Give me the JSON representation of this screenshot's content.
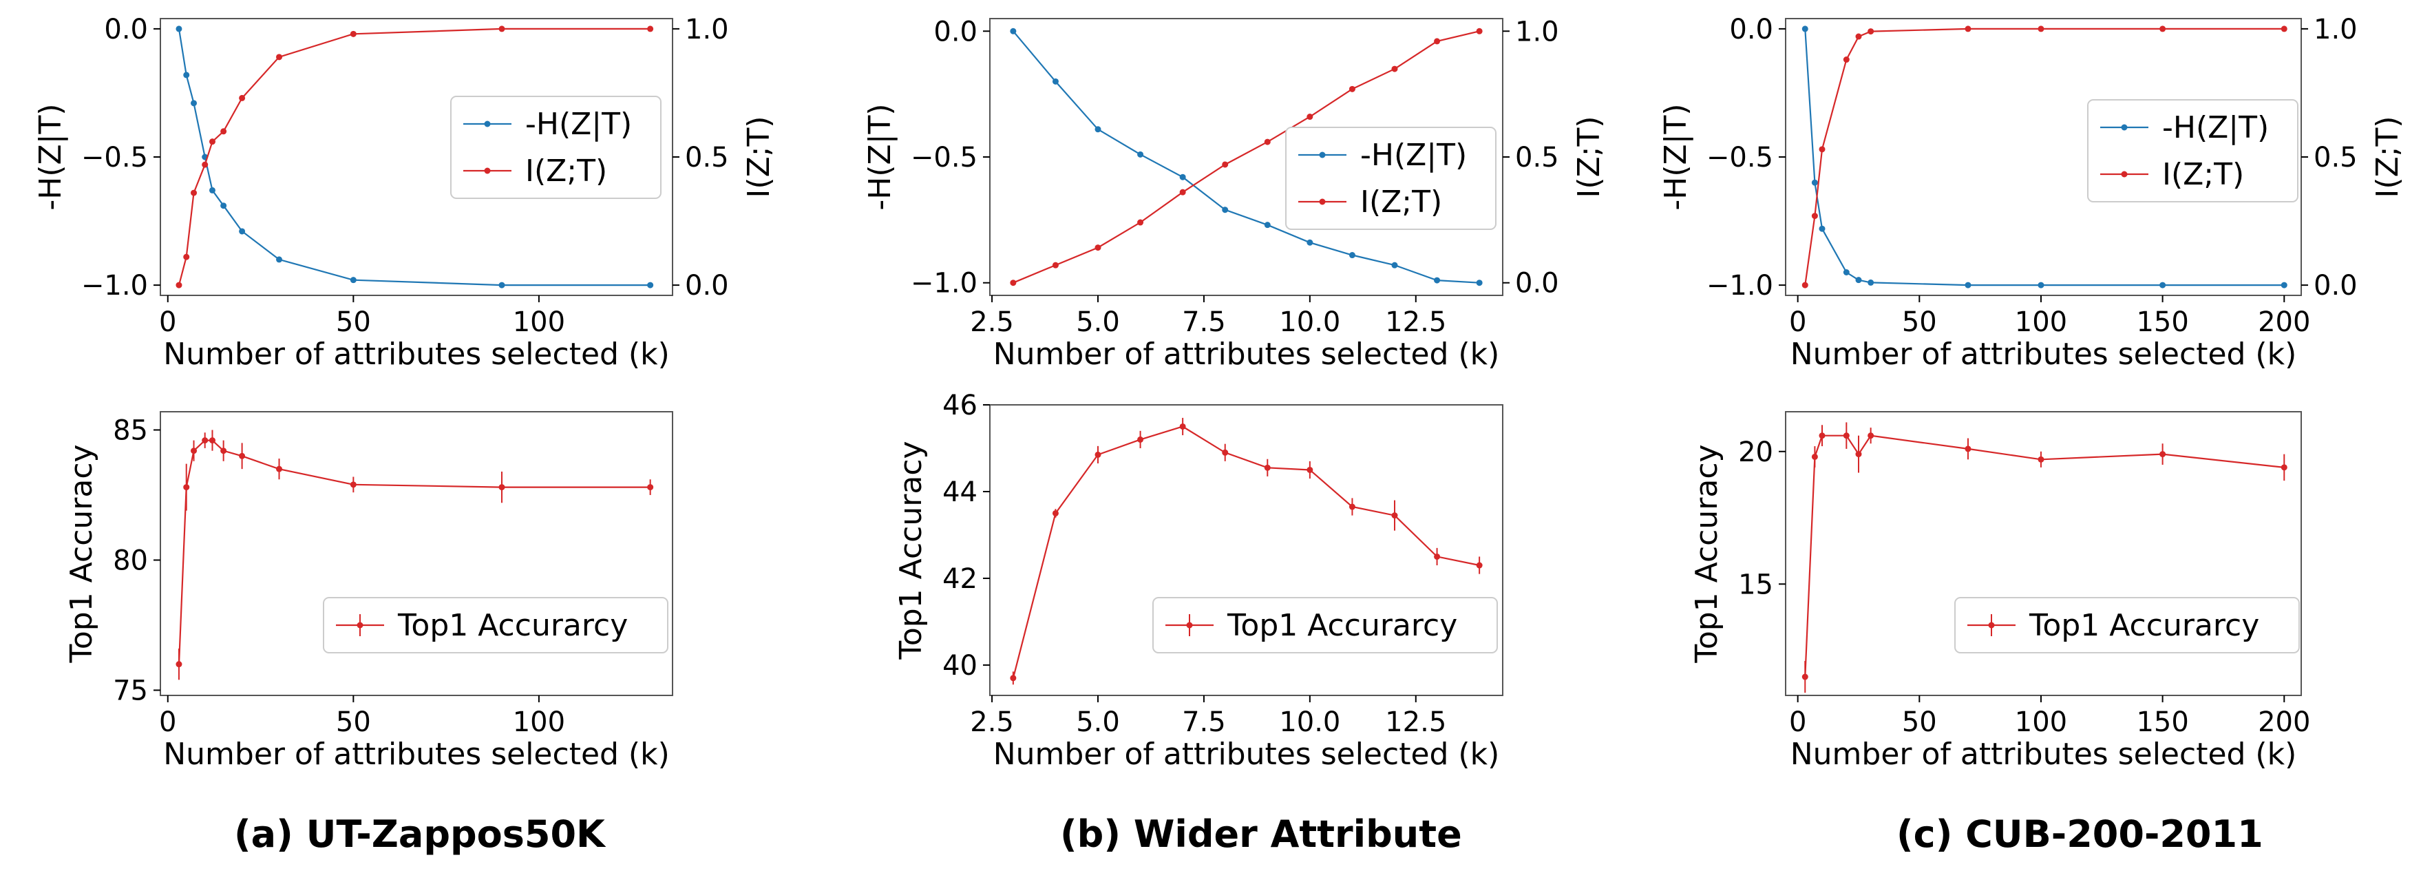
{
  "colors": {
    "blue": "#1f77b4",
    "red": "#d62728",
    "axis": "#000000",
    "legend_border": "#cccccc"
  },
  "captions": [
    "(a) UT-Zappos50K",
    "(b) Wider Attribute",
    "(c) CUB-200-2011"
  ],
  "chart_data": [
    {
      "type": "line",
      "panel": "a-top",
      "xlabel": "Number of attributes selected (k)",
      "ylabel": "-H(Z|T)",
      "ylabel_right": "I(Z;T)",
      "xlim": [
        -2,
        136
      ],
      "ylim": [
        -1.04,
        0.04
      ],
      "ylim_right": [
        -0.04,
        1.04
      ],
      "xticks": [
        0,
        50,
        100
      ],
      "xtick_labels": [
        "0",
        "50",
        "100"
      ],
      "yticks": [
        0.0,
        -0.5,
        -1.0
      ],
      "ytick_labels": [
        "0.0",
        "−0.5",
        "−1.0"
      ],
      "yticks_right": [
        1.0,
        0.5,
        0.0
      ],
      "ytick_labels_right": [
        "1.0",
        "0.5",
        "0.0"
      ],
      "legend": "center-right",
      "series": [
        {
          "name": "-H(Z|T)",
          "axis": "left",
          "color": "#1f77b4",
          "x": [
            3,
            5,
            7,
            10,
            12,
            15,
            20,
            30,
            50,
            90,
            130
          ],
          "y": [
            0.0,
            -0.18,
            -0.29,
            -0.5,
            -0.63,
            -0.69,
            -0.79,
            -0.9,
            -0.98,
            -1.0,
            -1.0
          ]
        },
        {
          "name": "I(Z;T)",
          "axis": "right",
          "color": "#d62728",
          "x": [
            3,
            5,
            7,
            10,
            12,
            15,
            20,
            30,
            50,
            90,
            130
          ],
          "y": [
            0.0,
            0.11,
            0.36,
            0.47,
            0.56,
            0.6,
            0.73,
            0.89,
            0.98,
            1.0,
            1.0
          ]
        }
      ]
    },
    {
      "type": "line",
      "panel": "b-top",
      "xlabel": "Number of attributes selected (k)",
      "ylabel": "-H(Z|T)",
      "ylabel_right": "I(Z;T)",
      "xlim": [
        2.45,
        14.55
      ],
      "ylim": [
        -1.05,
        0.05
      ],
      "ylim_right": [
        -0.05,
        1.05
      ],
      "xticks": [
        2.5,
        5.0,
        7.5,
        10.0,
        12.5
      ],
      "xtick_labels": [
        "2.5",
        "5.0",
        "7.5",
        "10.0",
        "12.5"
      ],
      "yticks": [
        0.0,
        -0.5,
        -1.0
      ],
      "ytick_labels": [
        "0.0",
        "−0.5",
        "−1.0"
      ],
      "yticks_right": [
        1.0,
        0.5,
        0.0
      ],
      "ytick_labels_right": [
        "1.0",
        "0.5",
        "0.0"
      ],
      "legend": "center-right",
      "series": [
        {
          "name": "-H(Z|T)",
          "axis": "left",
          "color": "#1f77b4",
          "x": [
            3,
            4,
            5,
            6,
            7,
            8,
            9,
            10,
            11,
            12,
            13,
            14
          ],
          "y": [
            0.0,
            -0.2,
            -0.39,
            -0.49,
            -0.58,
            -0.71,
            -0.77,
            -0.84,
            -0.89,
            -0.93,
            -0.99,
            -1.0
          ]
        },
        {
          "name": "I(Z;T)",
          "axis": "right",
          "color": "#d62728",
          "x": [
            3,
            4,
            5,
            6,
            7,
            8,
            9,
            10,
            11,
            12,
            13,
            14
          ],
          "y": [
            0.0,
            0.07,
            0.14,
            0.24,
            0.36,
            0.47,
            0.56,
            0.66,
            0.77,
            0.85,
            0.96,
            1.0
          ]
        }
      ]
    },
    {
      "type": "line",
      "panel": "c-top",
      "xlabel": "Number of attributes selected (k)",
      "ylabel": "-H(Z|T)",
      "ylabel_right": "I(Z;T)",
      "xlim": [
        -5,
        207
      ],
      "ylim": [
        -1.04,
        0.04
      ],
      "ylim_right": [
        -0.04,
        1.04
      ],
      "xticks": [
        0,
        50,
        100,
        150,
        200
      ],
      "xtick_labels": [
        "0",
        "50",
        "100",
        "150",
        "200"
      ],
      "yticks": [
        0.0,
        -0.5,
        -1.0
      ],
      "ytick_labels": [
        "0.0",
        "−0.5",
        "−1.0"
      ],
      "yticks_right": [
        1.0,
        0.5,
        0.0
      ],
      "ytick_labels_right": [
        "1.0",
        "0.5",
        "0.0"
      ],
      "legend": "center-right",
      "series": [
        {
          "name": "-H(Z|T)",
          "axis": "left",
          "color": "#1f77b4",
          "x": [
            3,
            7,
            10,
            20,
            25,
            30,
            70,
            100,
            150,
            200
          ],
          "y": [
            0.0,
            -0.6,
            -0.78,
            -0.95,
            -0.98,
            -0.99,
            -1.0,
            -1.0,
            -1.0,
            -1.0
          ]
        },
        {
          "name": "I(Z;T)",
          "axis": "right",
          "color": "#d62728",
          "x": [
            3,
            7,
            10,
            20,
            25,
            30,
            70,
            100,
            150,
            200
          ],
          "y": [
            0.0,
            0.27,
            0.53,
            0.88,
            0.97,
            0.99,
            1.0,
            1.0,
            1.0,
            1.0
          ]
        }
      ]
    },
    {
      "type": "line",
      "panel": "a-bottom",
      "xlabel": "Number of attributes selected (k)",
      "ylabel": "Top1 Accuracy",
      "xlim": [
        -2,
        136
      ],
      "ylim": [
        74.8,
        85.7
      ],
      "xticks": [
        0,
        50,
        100
      ],
      "xtick_labels": [
        "0",
        "50",
        "100"
      ],
      "yticks": [
        75,
        80,
        85
      ],
      "ytick_labels": [
        "75",
        "80",
        "85"
      ],
      "legend": "lower-right",
      "series": [
        {
          "name": "Top1 Accurarcy",
          "color": "#d62728",
          "error_bars": true,
          "x": [
            3,
            5,
            7,
            10,
            12,
            15,
            20,
            30,
            50,
            90,
            130
          ],
          "y": [
            76.0,
            82.8,
            84.2,
            84.6,
            84.6,
            84.2,
            84.0,
            83.5,
            82.9,
            82.8,
            82.8
          ],
          "err": [
            0.6,
            0.9,
            0.4,
            0.3,
            0.4,
            0.4,
            0.5,
            0.4,
            0.3,
            0.6,
            0.3
          ]
        }
      ]
    },
    {
      "type": "line",
      "panel": "b-bottom",
      "xlabel": "Number of attributes selected (k)",
      "ylabel": "Top1 Accuracy",
      "xlim": [
        2.45,
        14.55
      ],
      "ylim": [
        39.3,
        46.0
      ],
      "xticks": [
        2.5,
        5.0,
        7.5,
        10.0,
        12.5
      ],
      "xtick_labels": [
        "2.5",
        "5.0",
        "7.5",
        "10.0",
        "12.5"
      ],
      "yticks": [
        40,
        42,
        44,
        46
      ],
      "ytick_labels": [
        "40",
        "42",
        "44",
        "46"
      ],
      "legend": "lower-right",
      "series": [
        {
          "name": "Top1 Accurarcy",
          "color": "#d62728",
          "error_bars": true,
          "x": [
            3,
            4,
            5,
            6,
            7,
            8,
            9,
            10,
            11,
            12,
            13,
            14
          ],
          "y": [
            39.7,
            43.5,
            44.85,
            45.2,
            45.5,
            44.9,
            44.55,
            44.5,
            43.65,
            43.45,
            42.5,
            42.3
          ],
          "err": [
            0.15,
            0.1,
            0.2,
            0.2,
            0.2,
            0.2,
            0.2,
            0.2,
            0.2,
            0.35,
            0.2,
            0.2
          ]
        }
      ]
    },
    {
      "type": "line",
      "panel": "c-bottom",
      "xlabel": "Number of attributes selected (k)",
      "ylabel": "Top1 Accuracy",
      "xlim": [
        -5,
        207
      ],
      "ylim": [
        10.8,
        21.5
      ],
      "xticks": [
        0,
        50,
        100,
        150,
        200
      ],
      "xtick_labels": [
        "0",
        "50",
        "100",
        "150",
        "200"
      ],
      "yticks": [
        15,
        20
      ],
      "ytick_labels": [
        "15",
        "20"
      ],
      "legend": "lower-right",
      "series": [
        {
          "name": "Top1 Accurarcy",
          "color": "#d62728",
          "error_bars": true,
          "x": [
            3,
            7,
            10,
            20,
            25,
            30,
            70,
            100,
            150,
            200
          ],
          "y": [
            11.5,
            19.8,
            20.6,
            20.6,
            19.9,
            20.6,
            20.1,
            19.7,
            19.9,
            19.4
          ],
          "err": [
            0.6,
            0.4,
            0.4,
            0.5,
            0.7,
            0.3,
            0.4,
            0.3,
            0.4,
            0.5
          ]
        }
      ]
    }
  ]
}
